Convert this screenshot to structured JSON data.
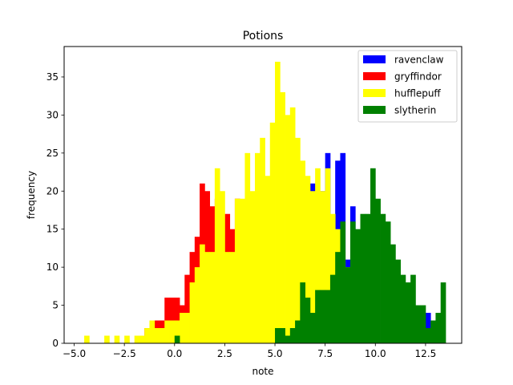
{
  "chart_data": {
    "type": "histogram",
    "title": "Potions",
    "xlabel": "note",
    "ylabel": "frequency",
    "xlim": [
      -5.5,
      14.3
    ],
    "ylim": [
      0,
      39
    ],
    "bin_width": 0.25,
    "xticks": [
      -5.0,
      -2.5,
      0.0,
      2.5,
      5.0,
      7.5,
      10.0,
      12.5
    ],
    "xtick_labels": [
      "−5.0",
      "−2.5",
      "0.0",
      "2.5",
      "5.0",
      "7.5",
      "10.0",
      "12.5"
    ],
    "yticks": [
      0,
      5,
      10,
      15,
      20,
      25,
      30,
      35
    ],
    "ytick_labels": [
      "0",
      "5",
      "10",
      "15",
      "20",
      "25",
      "30",
      "35"
    ],
    "legend_position": "top-right",
    "series": [
      {
        "name": "ravenclaw",
        "color": "#0000ff",
        "bins": [
          [
            6.75,
            21
          ],
          [
            7.25,
            20
          ],
          [
            7.5,
            25
          ],
          [
            7.75,
            16
          ],
          [
            8.0,
            24
          ],
          [
            8.25,
            25
          ],
          [
            8.5,
            11
          ],
          [
            8.75,
            18
          ],
          [
            12.5,
            4
          ]
        ]
      },
      {
        "name": "gryffindor",
        "color": "#ff0000",
        "bins": [
          [
            -1.5,
            2
          ],
          [
            -1.0,
            3
          ],
          [
            -0.75,
            3
          ],
          [
            -0.5,
            6
          ],
          [
            -0.25,
            6
          ],
          [
            0.0,
            6
          ],
          [
            0.25,
            5
          ],
          [
            0.5,
            9
          ],
          [
            0.75,
            12
          ],
          [
            1.0,
            14
          ],
          [
            1.25,
            21
          ],
          [
            1.5,
            20
          ],
          [
            1.75,
            18
          ],
          [
            2.0,
            19
          ],
          [
            2.5,
            17
          ],
          [
            2.75,
            15
          ],
          [
            3.0,
            19
          ]
        ]
      },
      {
        "name": "hufflepuff",
        "color": "#ffff00",
        "bins": [
          [
            -4.5,
            1
          ],
          [
            -3.5,
            1
          ],
          [
            -3.0,
            1
          ],
          [
            -2.5,
            1
          ],
          [
            -2.0,
            1
          ],
          [
            -1.75,
            1
          ],
          [
            -1.5,
            2
          ],
          [
            -1.25,
            3
          ],
          [
            -1.0,
            2
          ],
          [
            -0.75,
            2
          ],
          [
            -0.5,
            3
          ],
          [
            -0.25,
            3
          ],
          [
            0.0,
            3
          ],
          [
            0.25,
            4
          ],
          [
            0.5,
            4
          ],
          [
            0.75,
            8
          ],
          [
            1.0,
            10
          ],
          [
            1.25,
            13
          ],
          [
            1.5,
            12
          ],
          [
            1.75,
            12
          ],
          [
            2.0,
            23
          ],
          [
            2.25,
            20
          ],
          [
            2.5,
            12
          ],
          [
            2.75,
            12
          ],
          [
            3.0,
            19
          ],
          [
            3.25,
            19
          ],
          [
            3.5,
            25
          ],
          [
            3.75,
            20
          ],
          [
            4.0,
            25
          ],
          [
            4.25,
            27
          ],
          [
            4.5,
            22
          ],
          [
            4.75,
            29
          ],
          [
            5.0,
            37
          ],
          [
            5.25,
            33
          ],
          [
            5.5,
            30
          ],
          [
            5.75,
            31
          ],
          [
            6.0,
            27
          ],
          [
            6.25,
            24
          ],
          [
            6.5,
            22
          ],
          [
            6.75,
            20
          ],
          [
            7.0,
            23
          ],
          [
            7.25,
            20
          ],
          [
            7.5,
            23
          ],
          [
            7.75,
            17
          ],
          [
            8.0,
            15
          ],
          [
            8.25,
            12
          ],
          [
            8.5,
            10
          ]
        ]
      },
      {
        "name": "slytherin",
        "color": "#008000",
        "bins": [
          [
            0.0,
            1
          ],
          [
            5.0,
            2
          ],
          [
            5.25,
            2
          ],
          [
            5.5,
            1
          ],
          [
            5.75,
            2
          ],
          [
            6.0,
            3
          ],
          [
            6.25,
            8
          ],
          [
            6.5,
            6
          ],
          [
            6.75,
            4
          ],
          [
            7.0,
            7
          ],
          [
            7.25,
            7
          ],
          [
            7.5,
            7
          ],
          [
            7.75,
            9
          ],
          [
            8.0,
            12
          ],
          [
            8.25,
            16
          ],
          [
            8.5,
            10
          ],
          [
            8.75,
            16
          ],
          [
            9.0,
            15
          ],
          [
            9.25,
            17
          ],
          [
            9.5,
            17
          ],
          [
            9.75,
            23
          ],
          [
            10.0,
            19
          ],
          [
            10.25,
            17
          ],
          [
            10.5,
            16
          ],
          [
            10.75,
            13
          ],
          [
            11.0,
            11
          ],
          [
            11.25,
            9
          ],
          [
            11.5,
            8
          ],
          [
            11.75,
            9
          ],
          [
            12.0,
            5
          ],
          [
            12.25,
            5
          ],
          [
            12.5,
            2
          ],
          [
            12.75,
            3
          ],
          [
            13.0,
            4
          ],
          [
            13.25,
            8
          ]
        ]
      }
    ]
  }
}
